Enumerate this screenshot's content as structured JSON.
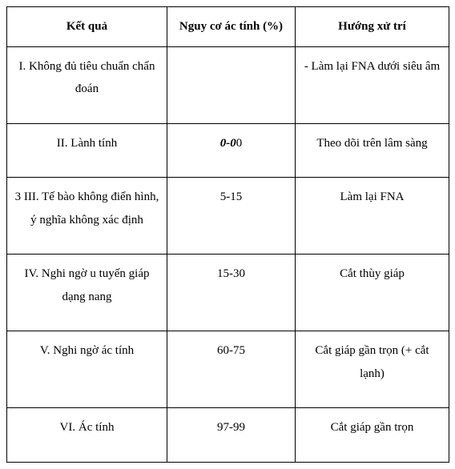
{
  "table": {
    "columns": [
      "Kết quả",
      "Nguy cơ ác tính (%)",
      "Hướng xử trí"
    ],
    "rows": [
      {
        "result": "I. Không đủ tiêu chuẩn chẩn đoán",
        "risk": "",
        "risk_prefix": "",
        "action": "- Làm lại FNA dưới siêu âm"
      },
      {
        "result": "II. Lành tính",
        "risk": "0",
        "risk_prefix": "0-0",
        "action": "Theo dõi trên lâm sàng"
      },
      {
        "result": "3 III. Tế bào không điển hình, ý nghĩa không xác định",
        "risk": "5-15",
        "risk_prefix": "",
        "action": "Làm lại FNA"
      },
      {
        "result": "IV. Nghi ngờ u tuyến giáp dạng nang",
        "risk": "15-30",
        "risk_prefix": "",
        "action": "Cắt thùy giáp"
      },
      {
        "result": "V. Nghi ngờ ác tính",
        "risk": "60-75",
        "risk_prefix": "",
        "action": "Cắt giáp gần trọn (+ cắt lạnh)"
      },
      {
        "result": "VI. Ác tính",
        "risk": "97-99",
        "risk_prefix": "",
        "action": "Cắt giáp gần trọn"
      }
    ]
  }
}
